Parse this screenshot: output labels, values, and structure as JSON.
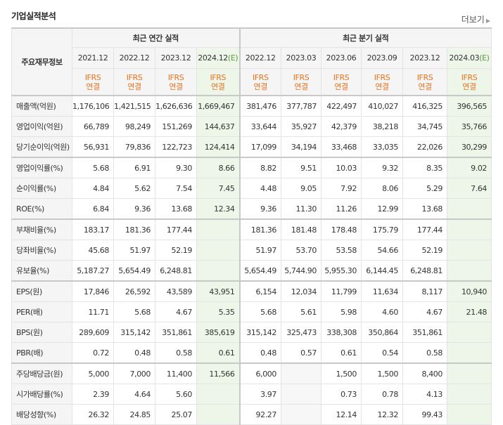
{
  "title": "기업실적분석",
  "more_label": "더보기",
  "header": {
    "label_col": "주요재무정보",
    "annual_group": "최근 연간 실적",
    "quarter_group": "최근 분기 실적",
    "periods": [
      {
        "label": "2021.12",
        "est": false
      },
      {
        "label": "2022.12",
        "est": false
      },
      {
        "label": "2023.12",
        "est": false
      },
      {
        "label": "2024.12",
        "est": true
      },
      {
        "label": "2022.12",
        "est": false
      },
      {
        "label": "2023.03",
        "est": false
      },
      {
        "label": "2023.06",
        "est": false
      },
      {
        "label": "2023.09",
        "est": false
      },
      {
        "label": "2023.12",
        "est": false
      },
      {
        "label": "2024.03",
        "est": true
      }
    ],
    "est_marker": "(E)",
    "basis_top": "IFRS",
    "basis_bottom": "연결"
  },
  "rows": [
    {
      "label": "매출액(억원)",
      "values": [
        "1,176,106",
        "1,421,515",
        "1,626,636",
        "1,669,467",
        "381,476",
        "377,787",
        "422,497",
        "410,027",
        "416,325",
        "396,565"
      ],
      "gs": true
    },
    {
      "label": "영업이익(억원)",
      "values": [
        "66,789",
        "98,249",
        "151,269",
        "144,637",
        "33,644",
        "35,927",
        "42,379",
        "38,218",
        "34,745",
        "35,766"
      ],
      "gs": false
    },
    {
      "label": "당기순이익(억원)",
      "values": [
        "56,931",
        "79,836",
        "122,723",
        "124,414",
        "17,099",
        "34,194",
        "33,468",
        "33,035",
        "22,026",
        "30,299"
      ],
      "gs": false
    },
    {
      "label": "영업이익률(%)",
      "values": [
        "5.68",
        "6.91",
        "9.30",
        "8.66",
        "8.82",
        "9.51",
        "10.03",
        "9.32",
        "8.35",
        "9.02"
      ],
      "gs": true
    },
    {
      "label": "순이익률(%)",
      "values": [
        "4.84",
        "5.62",
        "7.54",
        "7.45",
        "4.48",
        "9.05",
        "7.92",
        "8.06",
        "5.29",
        "7.64"
      ],
      "gs": false
    },
    {
      "label": "ROE(%)",
      "values": [
        "6.84",
        "9.36",
        "13.68",
        "12.34",
        "9.36",
        "11.30",
        "11.26",
        "12.99",
        "13.68",
        ""
      ],
      "gs": false
    },
    {
      "label": "부채비율(%)",
      "values": [
        "183.17",
        "181.36",
        "177.44",
        "",
        "181.36",
        "181.48",
        "178.48",
        "175.79",
        "177.44",
        ""
      ],
      "gs": true
    },
    {
      "label": "당좌비율(%)",
      "values": [
        "45.68",
        "51.97",
        "52.19",
        "",
        "51.97",
        "53.70",
        "53.58",
        "54.66",
        "52.19",
        ""
      ],
      "gs": false
    },
    {
      "label": "유보율(%)",
      "values": [
        "5,187.27",
        "5,654.49",
        "6,248.81",
        "",
        "5,654.49",
        "5,744.90",
        "5,955.30",
        "6,144.45",
        "6,248.81",
        ""
      ],
      "gs": false
    },
    {
      "label": "EPS(원)",
      "values": [
        "17,846",
        "26,592",
        "43,589",
        "43,951",
        "6,154",
        "12,034",
        "11,799",
        "11,634",
        "8,117",
        "10,940"
      ],
      "gs": true
    },
    {
      "label": "PER(배)",
      "values": [
        "11.71",
        "5.68",
        "4.67",
        "5.35",
        "5.68",
        "5.61",
        "5.98",
        "4.60",
        "4.67",
        "21.48"
      ],
      "gs": false
    },
    {
      "label": "BPS(원)",
      "values": [
        "289,609",
        "315,142",
        "351,861",
        "385,619",
        "315,142",
        "325,473",
        "338,308",
        "350,864",
        "351,861",
        ""
      ],
      "gs": false
    },
    {
      "label": "PBR(배)",
      "values": [
        "0.72",
        "0.48",
        "0.58",
        "0.61",
        "0.48",
        "0.57",
        "0.61",
        "0.54",
        "0.58",
        ""
      ],
      "gs": false
    },
    {
      "label": "주당배당금(원)",
      "values": [
        "5,000",
        "7,000",
        "11,400",
        "11,566",
        "6,000",
        "",
        "1,500",
        "1,500",
        "8,400",
        ""
      ],
      "gs": true
    },
    {
      "label": "시가배당률(%)",
      "values": [
        "2.39",
        "4.64",
        "5.60",
        "",
        "3.97",
        "",
        "0.73",
        "0.78",
        "4.13",
        ""
      ],
      "gs": false
    },
    {
      "label": "배당성향(%)",
      "values": [
        "26.32",
        "24.85",
        "25.07",
        "",
        "92.27",
        "",
        "12.14",
        "12.32",
        "99.43",
        ""
      ],
      "gs": false
    }
  ]
}
